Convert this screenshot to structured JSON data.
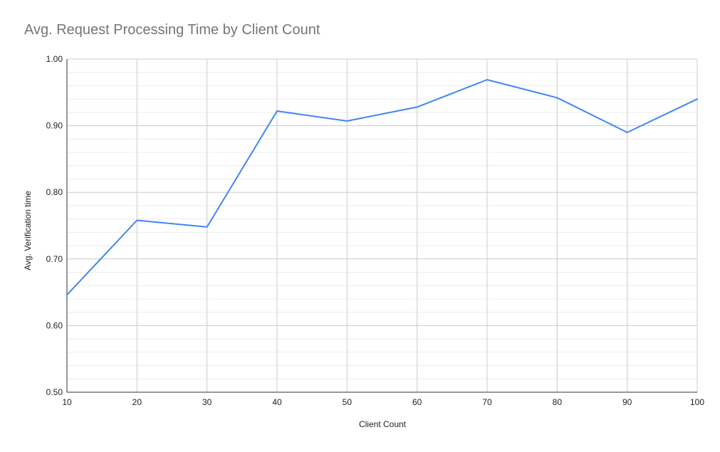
{
  "chart_data": {
    "type": "line",
    "title": "Avg. Request Processing Time by Client Count",
    "xlabel": "Client Count",
    "ylabel": "Avg. Verification time",
    "x": [
      10,
      20,
      30,
      40,
      50,
      60,
      70,
      80,
      90,
      100
    ],
    "series": [
      {
        "values": [
          0.646,
          0.758,
          0.748,
          0.922,
          0.907,
          0.928,
          0.969,
          0.942,
          0.89,
          0.94
        ]
      }
    ],
    "xlim": [
      10,
      100
    ],
    "ylim": [
      0.5,
      1.0
    ],
    "x_ticks": [
      "10",
      "20",
      "30",
      "40",
      "50",
      "60",
      "70",
      "80",
      "90",
      "100"
    ],
    "y_ticks": [
      "0.50",
      "0.60",
      "0.70",
      "0.80",
      "0.90",
      "1.00"
    ],
    "grid": true,
    "minor_grid": true,
    "legend": "none",
    "colors": {
      "line": "#4285f4",
      "major_grid": "#cccccc",
      "minor_grid": "#ececec",
      "axis": "#333333",
      "title": "#757575"
    }
  }
}
